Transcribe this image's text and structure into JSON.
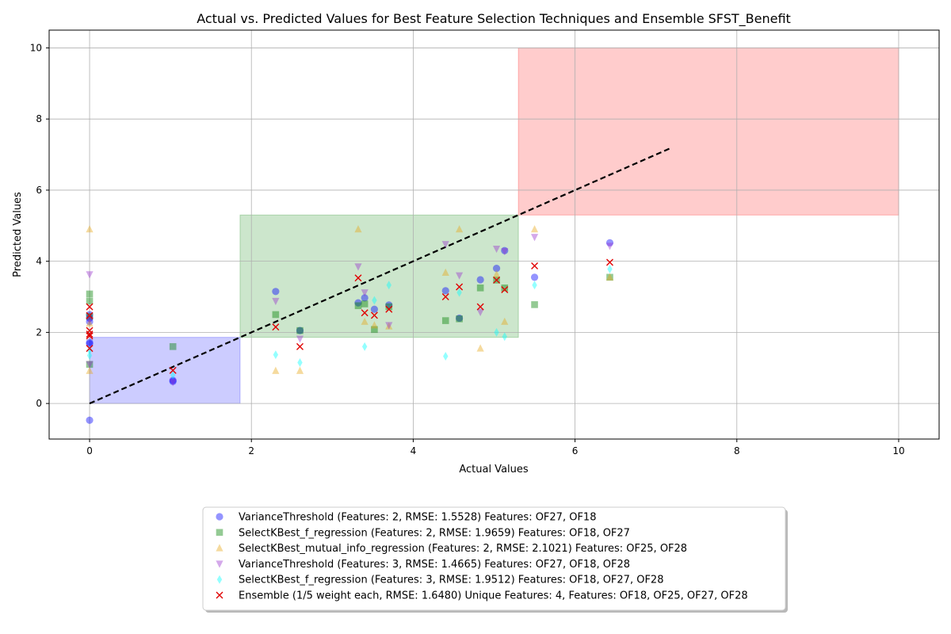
{
  "chart_data": {
    "type": "scatter",
    "title": "Actual vs. Predicted Values for Best Feature Selection Techniques and Ensemble SFST_Benefit",
    "xlabel": "Actual Values",
    "ylabel": "Predicted Values",
    "xlim": [
      -0.5,
      10.5
    ],
    "ylim": [
      -1,
      10.5
    ],
    "xticks": [
      0,
      2,
      4,
      6,
      8,
      10
    ],
    "yticks": [
      0,
      2,
      4,
      6,
      8,
      10
    ],
    "tick_labels_x": [
      "0",
      "2",
      "4",
      "6",
      "8",
      "10"
    ],
    "tick_labels_y": [
      "0",
      "2",
      "4",
      "6",
      "8",
      "10"
    ],
    "grid": true,
    "legend_position": "below-center",
    "regions": [
      {
        "x": [
          0,
          1.86
        ],
        "y": [
          0,
          1.86
        ],
        "color": "#0000ff"
      },
      {
        "x": [
          1.86,
          5.3
        ],
        "y": [
          1.86,
          5.3
        ],
        "color": "#008000"
      },
      {
        "x": [
          5.3,
          10
        ],
        "y": [
          5.3,
          10
        ],
        "color": "#ff0000"
      }
    ],
    "diagonal": {
      "x": [
        0,
        7.2
      ],
      "y": [
        0,
        7.2
      ],
      "color": "#000000",
      "style": "dashed"
    },
    "series": [
      {
        "name": "VarianceThreshold (Features: 2, RMSE: 1.5528) Features: OF27, OF18",
        "marker": "circle",
        "color": "#0000ff",
        "points": [
          [
            0,
            -0.47
          ],
          [
            0,
            1.68
          ],
          [
            0,
            1.72
          ],
          [
            0,
            2.4
          ],
          [
            0,
            2.5
          ],
          [
            0,
            2.3
          ],
          [
            1.03,
            0.62
          ],
          [
            1.03,
            0.65
          ],
          [
            2.3,
            3.15
          ],
          [
            2.6,
            2.05
          ],
          [
            3.32,
            2.83
          ],
          [
            3.4,
            2.97
          ],
          [
            3.52,
            2.65
          ],
          [
            3.7,
            2.77
          ],
          [
            4.4,
            3.17
          ],
          [
            4.57,
            2.4
          ],
          [
            4.83,
            3.48
          ],
          [
            5.03,
            3.8
          ],
          [
            5.13,
            4.3
          ],
          [
            5.5,
            3.55
          ],
          [
            6.43,
            4.52
          ]
        ]
      },
      {
        "name": "SelectKBest_f_regression (Features: 2, RMSE: 1.9659) Features: OF18, OF27",
        "marker": "square",
        "color": "#008000",
        "points": [
          [
            0,
            3.08
          ],
          [
            0,
            2.88
          ],
          [
            0,
            2.45
          ],
          [
            0,
            1.1
          ],
          [
            1.03,
            1.6
          ],
          [
            2.3,
            2.5
          ],
          [
            2.6,
            2.05
          ],
          [
            3.32,
            2.75
          ],
          [
            3.4,
            2.8
          ],
          [
            3.52,
            2.08
          ],
          [
            3.7,
            2.72
          ],
          [
            4.4,
            2.33
          ],
          [
            4.57,
            2.38
          ],
          [
            4.83,
            3.25
          ],
          [
            5.03,
            3.47
          ],
          [
            5.13,
            3.25
          ],
          [
            5.5,
            2.78
          ],
          [
            6.43,
            3.55
          ]
        ]
      },
      {
        "name": "SelectKBest_mutual_info_regression (Features: 2, RMSE: 2.1021) Features: OF25, OF28",
        "marker": "triangle-up",
        "color": "#e6a817",
        "points": [
          [
            0,
            4.9
          ],
          [
            0,
            0.92
          ],
          [
            0,
            2.25
          ],
          [
            2.3,
            0.92
          ],
          [
            2.6,
            0.92
          ],
          [
            3.32,
            4.9
          ],
          [
            3.4,
            2.3
          ],
          [
            3.52,
            2.2
          ],
          [
            3.7,
            2.17
          ],
          [
            4.4,
            3.68
          ],
          [
            4.57,
            4.9
          ],
          [
            4.83,
            1.55
          ],
          [
            5.03,
            3.63
          ],
          [
            5.13,
            2.3
          ],
          [
            5.5,
            4.9
          ],
          [
            6.43,
            3.55
          ]
        ]
      },
      {
        "name": "VarianceThreshold (Features: 3, RMSE: 1.4665) Features: OF27, OF18, OF28",
        "marker": "triangle-down",
        "color": "#9932cc",
        "points": [
          [
            0,
            3.63
          ],
          [
            0,
            1.1
          ],
          [
            0,
            2.35
          ],
          [
            1.03,
            0.6
          ],
          [
            2.3,
            2.88
          ],
          [
            2.6,
            1.82
          ],
          [
            3.32,
            3.85
          ],
          [
            3.4,
            3.12
          ],
          [
            3.7,
            2.2
          ],
          [
            4.4,
            4.48
          ],
          [
            4.57,
            3.6
          ],
          [
            4.83,
            2.57
          ],
          [
            5.03,
            4.35
          ],
          [
            5.13,
            4.28
          ],
          [
            5.5,
            4.68
          ],
          [
            6.43,
            4.43
          ]
        ]
      },
      {
        "name": "SelectKBest_f_regression (Features: 3, RMSE: 1.9512) Features: OF18, OF27, OF28",
        "marker": "diamond",
        "color": "#00ffff",
        "points": [
          [
            0,
            1.35
          ],
          [
            0,
            1.5
          ],
          [
            1.03,
            0.8
          ],
          [
            2.3,
            1.37
          ],
          [
            2.6,
            1.15
          ],
          [
            3.4,
            1.6
          ],
          [
            3.52,
            2.9
          ],
          [
            3.7,
            3.33
          ],
          [
            4.4,
            1.33
          ],
          [
            4.57,
            3.12
          ],
          [
            5.03,
            2.0
          ],
          [
            5.13,
            1.88
          ],
          [
            5.5,
            3.33
          ],
          [
            6.43,
            3.78
          ]
        ]
      },
      {
        "name": "Ensemble (1/5 weight each, RMSE: 1.6480) Unique Features: 4, Features: OF18, OF25, OF27, OF28",
        "marker": "x",
        "color": "#e00000",
        "points": [
          [
            0,
            2.72
          ],
          [
            0,
            2.47
          ],
          [
            0,
            2.05
          ],
          [
            0,
            1.95
          ],
          [
            0,
            1.9
          ],
          [
            0,
            1.55
          ],
          [
            1.03,
            0.93
          ],
          [
            2.3,
            2.15
          ],
          [
            2.6,
            1.6
          ],
          [
            3.32,
            3.53
          ],
          [
            3.4,
            2.55
          ],
          [
            3.52,
            2.48
          ],
          [
            3.7,
            2.65
          ],
          [
            4.4,
            3.0
          ],
          [
            4.57,
            3.28
          ],
          [
            4.83,
            2.72
          ],
          [
            5.03,
            3.47
          ],
          [
            5.13,
            3.2
          ],
          [
            5.5,
            3.87
          ],
          [
            6.43,
            3.97
          ]
        ]
      }
    ]
  }
}
